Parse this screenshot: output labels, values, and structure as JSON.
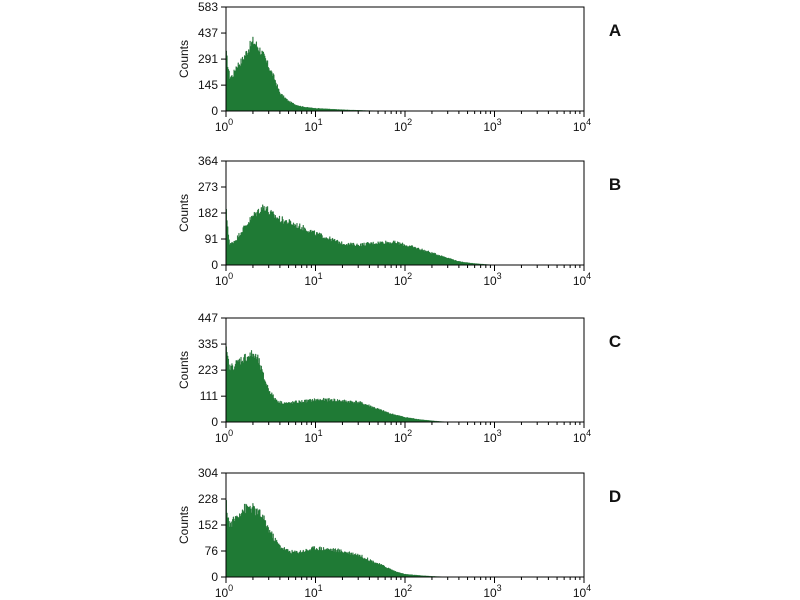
{
  "colors": {
    "fill": "#1f7a35",
    "edge": "#186a2c",
    "frame": "#000000"
  },
  "chart_data": [
    {
      "type": "area",
      "panel_label": "A",
      "ylabel": "Counts",
      "xscale": "log",
      "xlim": [
        1,
        10000
      ],
      "ylim": [
        0,
        583
      ],
      "yticks": [
        0,
        145,
        291,
        437,
        583
      ],
      "xtick_labels": [
        [
          "10",
          "0"
        ],
        [
          "10",
          "1"
        ],
        [
          "10",
          "2"
        ],
        [
          "10",
          "3"
        ],
        [
          "10",
          "4"
        ]
      ],
      "grid": false,
      "x": [
        1,
        1.1,
        1.2,
        1.3,
        1.5,
        1.7,
        2,
        2.2,
        2.5,
        3,
        3.5,
        4,
        5,
        6,
        7,
        8,
        10,
        13,
        15,
        20,
        25,
        30,
        40,
        50,
        60,
        80,
        10000
      ],
      "y": [
        330,
        190,
        200,
        250,
        280,
        330,
        390,
        370,
        330,
        250,
        180,
        100,
        55,
        35,
        25,
        20,
        15,
        12,
        10,
        7,
        5,
        4,
        2,
        1,
        0,
        0,
        0
      ]
    },
    {
      "type": "area",
      "panel_label": "B",
      "ylabel": "Counts",
      "xscale": "log",
      "xlim": [
        1,
        10000
      ],
      "ylim": [
        0,
        364
      ],
      "yticks": [
        0,
        91,
        182,
        273,
        364
      ],
      "xtick_labels": [
        [
          "10",
          "0"
        ],
        [
          "10",
          "1"
        ],
        [
          "10",
          "2"
        ],
        [
          "10",
          "3"
        ],
        [
          "10",
          "4"
        ]
      ],
      "grid": false,
      "x": [
        1,
        1.1,
        1.3,
        1.5,
        2,
        2.5,
        2.8,
        3,
        4,
        5,
        6,
        8,
        10,
        15,
        20,
        30,
        40,
        60,
        80,
        100,
        150,
        200,
        300,
        400,
        600,
        800,
        1000,
        10000
      ],
      "y": [
        195,
        70,
        90,
        120,
        170,
        200,
        205,
        185,
        160,
        150,
        140,
        125,
        110,
        90,
        75,
        70,
        75,
        80,
        78,
        70,
        55,
        42,
        25,
        12,
        5,
        2,
        0,
        0
      ]
    },
    {
      "type": "area",
      "panel_label": "C",
      "ylabel": "Counts",
      "xscale": "log",
      "xlim": [
        1,
        10000
      ],
      "ylim": [
        0,
        447
      ],
      "yticks": [
        0,
        111,
        223,
        335,
        447
      ],
      "xtick_labels": [
        [
          "10",
          "0"
        ],
        [
          "10",
          "1"
        ],
        [
          "10",
          "2"
        ],
        [
          "10",
          "3"
        ],
        [
          "10",
          "4"
        ]
      ],
      "grid": false,
      "x": [
        1,
        1.1,
        1.3,
        1.5,
        1.8,
        2,
        2.3,
        2.6,
        3,
        3.5,
        4,
        5,
        6,
        8,
        10,
        15,
        20,
        30,
        40,
        50,
        70,
        100,
        150,
        200,
        300,
        10000
      ],
      "y": [
        310,
        230,
        250,
        270,
        285,
        290,
        265,
        200,
        140,
        100,
        85,
        80,
        85,
        90,
        95,
        95,
        90,
        85,
        70,
        55,
        35,
        20,
        10,
        5,
        0,
        0
      ]
    },
    {
      "type": "area",
      "panel_label": "D",
      "ylabel": "Counts",
      "xscale": "log",
      "xlim": [
        1,
        10000
      ],
      "ylim": [
        0,
        304
      ],
      "yticks": [
        0,
        76,
        152,
        228,
        304
      ],
      "xtick_labels": [
        [
          "10",
          "0"
        ],
        [
          "10",
          "1"
        ],
        [
          "10",
          "2"
        ],
        [
          "10",
          "3"
        ],
        [
          "10",
          "4"
        ]
      ],
      "grid": false,
      "x": [
        1,
        1.1,
        1.3,
        1.5,
        1.8,
        2,
        2.5,
        3,
        3.5,
        4,
        5,
        6,
        8,
        10,
        15,
        20,
        30,
        40,
        60,
        80,
        100,
        150,
        200,
        300,
        10000
      ],
      "y": [
        215,
        150,
        175,
        195,
        205,
        200,
        180,
        140,
        110,
        90,
        75,
        72,
        78,
        85,
        80,
        75,
        65,
        50,
        30,
        15,
        8,
        4,
        2,
        0,
        0
      ]
    }
  ]
}
